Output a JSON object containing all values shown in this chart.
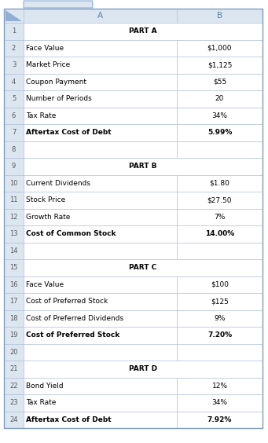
{
  "rows": [
    {
      "row": 1,
      "col_a": "PART A",
      "col_b": "",
      "bold_a": true,
      "bold_b": false,
      "header": true
    },
    {
      "row": 2,
      "col_a": "Face Value",
      "col_b": "$1,000",
      "bold_a": false,
      "bold_b": false,
      "header": false
    },
    {
      "row": 3,
      "col_a": "Market Price",
      "col_b": "$1,125",
      "bold_a": false,
      "bold_b": false,
      "header": false
    },
    {
      "row": 4,
      "col_a": "Coupon Payment",
      "col_b": "$55",
      "bold_a": false,
      "bold_b": false,
      "header": false
    },
    {
      "row": 5,
      "col_a": "Number of Periods",
      "col_b": "20",
      "bold_a": false,
      "bold_b": false,
      "header": false
    },
    {
      "row": 6,
      "col_a": "Tax Rate",
      "col_b": "34%",
      "bold_a": false,
      "bold_b": false,
      "header": false
    },
    {
      "row": 7,
      "col_a": "Aftertax Cost of Debt",
      "col_b": "5.99%",
      "bold_a": true,
      "bold_b": true,
      "header": false
    },
    {
      "row": 8,
      "col_a": "",
      "col_b": "",
      "bold_a": false,
      "bold_b": false,
      "header": false
    },
    {
      "row": 9,
      "col_a": "PART B",
      "col_b": "",
      "bold_a": true,
      "bold_b": false,
      "header": true
    },
    {
      "row": 10,
      "col_a": "Current Dividends",
      "col_b": "$1.80",
      "bold_a": false,
      "bold_b": false,
      "header": false
    },
    {
      "row": 11,
      "col_a": "Stock Price",
      "col_b": "$27.50",
      "bold_a": false,
      "bold_b": false,
      "header": false
    },
    {
      "row": 12,
      "col_a": "Growth Rate",
      "col_b": "7%",
      "bold_a": false,
      "bold_b": false,
      "header": false
    },
    {
      "row": 13,
      "col_a": "Cost of Common Stock",
      "col_b": "14.00%",
      "bold_a": true,
      "bold_b": true,
      "header": false
    },
    {
      "row": 14,
      "col_a": "",
      "col_b": "",
      "bold_a": false,
      "bold_b": false,
      "header": false
    },
    {
      "row": 15,
      "col_a": "PART C",
      "col_b": "",
      "bold_a": true,
      "bold_b": false,
      "header": true
    },
    {
      "row": 16,
      "col_a": "Face Value",
      "col_b": "$100",
      "bold_a": false,
      "bold_b": false,
      "header": false
    },
    {
      "row": 17,
      "col_a": "Cost of Preferred Stock",
      "col_b": "$125",
      "bold_a": false,
      "bold_b": false,
      "header": false
    },
    {
      "row": 18,
      "col_a": "Cost of Preferred Dividends",
      "col_b": "9%",
      "bold_a": false,
      "bold_b": false,
      "header": false
    },
    {
      "row": 19,
      "col_a": "Cost of Preferred Stock",
      "col_b": "7.20%",
      "bold_a": true,
      "bold_b": true,
      "header": false
    },
    {
      "row": 20,
      "col_a": "",
      "col_b": "",
      "bold_a": false,
      "bold_b": false,
      "header": false
    },
    {
      "row": 21,
      "col_a": "PART D",
      "col_b": "",
      "bold_a": true,
      "bold_b": false,
      "header": true
    },
    {
      "row": 22,
      "col_a": "Bond Yield",
      "col_b": "12%",
      "bold_a": false,
      "bold_b": false,
      "header": false
    },
    {
      "row": 23,
      "col_a": "Tax Rate",
      "col_b": "34%",
      "bold_a": false,
      "bold_b": false,
      "header": false
    },
    {
      "row": 24,
      "col_a": "Aftertax Cost of Debt",
      "col_b": "7.92%",
      "bold_a": true,
      "bold_b": true,
      "header": false
    }
  ],
  "bg_color_col_header": "#dce6f1",
  "bg_color_row_num": "#dce6f1",
  "bg_color_white": "#ffffff",
  "border_color": "#aabbd4",
  "border_color_outer": "#7f9dbf",
  "text_color": "#000000",
  "row_num_color": "#5a5a5a",
  "fig_bg": "#ffffff",
  "font_size": 6.5,
  "col_header_fontsize": 7.5,
  "tab_color": "#aec6e8",
  "tab_bg": "#dce6f1"
}
